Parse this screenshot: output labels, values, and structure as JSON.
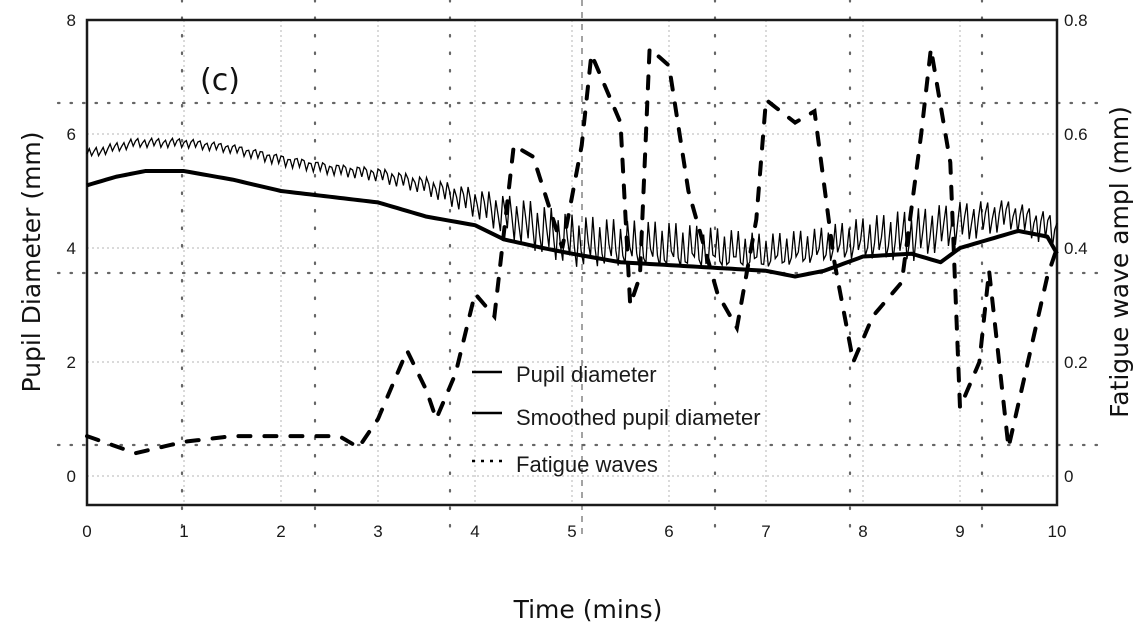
{
  "chart_data": {
    "type": "line",
    "panel_label": "(c)",
    "title": "",
    "xlabel": "Time (mins)",
    "ylabel": "Pupil Diameter (mm)",
    "ylabel_right": "Fatigue wave ampl (mm)",
    "xlim": [
      0,
      10
    ],
    "ylim": [
      -0.5,
      8
    ],
    "ylim_right": [
      -0.05,
      0.8
    ],
    "x_ticks": [
      "0",
      "1",
      "2",
      "3",
      "4",
      "5",
      "6",
      "7",
      "8",
      "9",
      "10"
    ],
    "y_ticks": [
      "0",
      "2",
      "4",
      "6",
      "8"
    ],
    "y_ticks_right": [
      "0",
      "0.2",
      "0.4",
      "0.6",
      "0.8"
    ],
    "grid": true,
    "legend_position": "center-lower",
    "legend": [
      "Pupil diameter",
      "Smoothed pupil diameter",
      "Fatigue waves"
    ],
    "series": [
      {
        "name": "Pupil diameter",
        "axis": "left",
        "style": "thin-solid-oscillating",
        "x": [
          0,
          0.5,
          1,
          1.5,
          2,
          2.5,
          3,
          3.5,
          4,
          4.5,
          5,
          5.5,
          6,
          6.5,
          7,
          7.5,
          8,
          8.5,
          9,
          9.5,
          10
        ],
        "values": [
          5.65,
          5.85,
          5.85,
          5.75,
          5.55,
          5.4,
          5.3,
          5.1,
          4.8,
          4.45,
          4.1,
          4.05,
          4.0,
          3.95,
          3.9,
          4.0,
          4.15,
          4.2,
          4.45,
          4.6,
          4.3
        ],
        "oscillation_amplitude": [
          0.08,
          0.08,
          0.08,
          0.08,
          0.1,
          0.1,
          0.12,
          0.15,
          0.25,
          0.4,
          0.45,
          0.4,
          0.4,
          0.35,
          0.3,
          0.3,
          0.35,
          0.45,
          0.35,
          0.25,
          0.3
        ]
      },
      {
        "name": "Smoothed pupil diameter",
        "axis": "left",
        "style": "thick-solid",
        "x": [
          0,
          0.3,
          0.6,
          1,
          1.5,
          2,
          2.5,
          3,
          3.5,
          4,
          4.3,
          4.7,
          5,
          5.5,
          6,
          6.5,
          7,
          7.3,
          7.6,
          8,
          8.5,
          8.8,
          9,
          9.3,
          9.6,
          9.9,
          10
        ],
        "values": [
          5.1,
          5.25,
          5.35,
          5.35,
          5.2,
          5.0,
          4.9,
          4.8,
          4.55,
          4.4,
          4.15,
          4.0,
          3.9,
          3.75,
          3.7,
          3.65,
          3.6,
          3.5,
          3.6,
          3.85,
          3.9,
          3.75,
          4.0,
          4.15,
          4.3,
          4.2,
          3.9
        ]
      },
      {
        "name": "Fatigue waves",
        "axis": "right",
        "style": "dashed",
        "x": [
          0,
          0.5,
          1,
          1.5,
          2,
          2.6,
          2.8,
          3,
          3.3,
          3.5,
          3.6,
          3.8,
          4,
          4.2,
          4.4,
          4.6,
          4.9,
          5.1,
          5.2,
          5.5,
          5.6,
          5.7,
          5.8,
          6,
          6.2,
          6.5,
          6.7,
          6.9,
          7,
          7.3,
          7.5,
          7.7,
          7.9,
          8.1,
          8.4,
          8.6,
          8.7,
          8.9,
          9,
          9.2,
          9.3,
          9.5,
          9.7,
          9.9,
          10
        ],
        "values": [
          0.07,
          0.04,
          0.06,
          0.07,
          0.07,
          0.07,
          0.05,
          0.1,
          0.22,
          0.15,
          0.1,
          0.18,
          0.32,
          0.28,
          0.58,
          0.56,
          0.4,
          0.58,
          0.74,
          0.62,
          0.3,
          0.35,
          0.75,
          0.72,
          0.5,
          0.32,
          0.26,
          0.45,
          0.66,
          0.62,
          0.64,
          0.38,
          0.2,
          0.28,
          0.34,
          0.6,
          0.75,
          0.55,
          0.12,
          0.2,
          0.36,
          0.05,
          0.2,
          0.35,
          0.4
        ]
      }
    ]
  },
  "colors": {
    "line": "#000000",
    "grid": "#b5b5b5",
    "grid_overlay": "#666666",
    "frame": "#1a1a1a",
    "tick_text": "#1a1a1a"
  }
}
